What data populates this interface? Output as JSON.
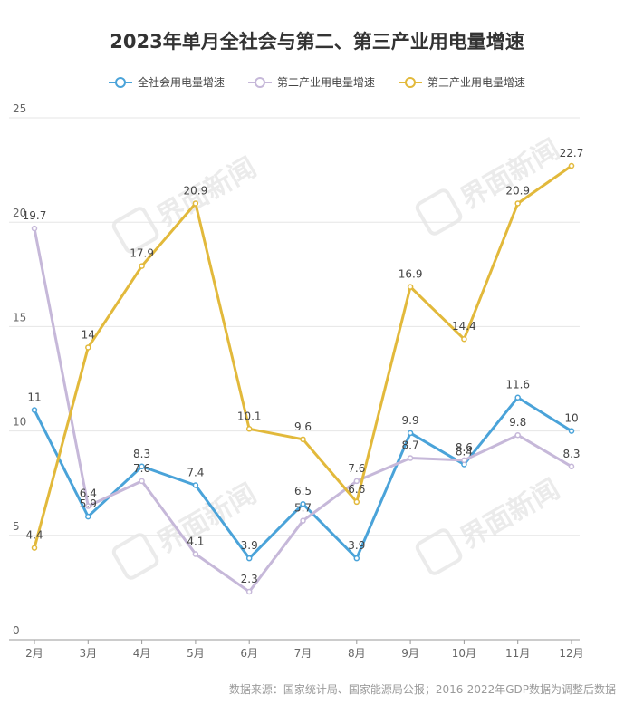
{
  "chart_data": {
    "type": "line",
    "title": "2023年单月全社会与第二、第三产业用电量增速",
    "categories": [
      "2月",
      "3月",
      "4月",
      "5月",
      "6月",
      "7月",
      "8月",
      "9月",
      "10月",
      "11月",
      "12月"
    ],
    "ylim": [
      0,
      25
    ],
    "yticks": [
      "0",
      "5",
      "10",
      "15",
      "20",
      "25"
    ],
    "grid": true,
    "legend_position": "top",
    "series": [
      {
        "name": "全社会用电量增速",
        "color": "#4aa3d9",
        "values": [
          11,
          5.9,
          8.3,
          7.4,
          3.9,
          6.5,
          3.9,
          9.9,
          8.4,
          11.6,
          10
        ],
        "labels": [
          "11",
          "5.9",
          "8.3",
          "7.4",
          "3.9",
          "6.5",
          "3.9",
          "9.9",
          "8.4",
          "11.6",
          "10"
        ]
      },
      {
        "name": "第二产业用电量增速",
        "color": "#c6b8d9",
        "values": [
          19.7,
          6.4,
          7.6,
          4.1,
          2.3,
          5.7,
          7.6,
          8.7,
          8.6,
          9.8,
          8.3
        ],
        "labels": [
          "19.7",
          "6.4",
          "7.6",
          "4.1",
          "2.3",
          "5.7",
          "7.6",
          "8.7",
          "8.6",
          "9.8",
          "8.3"
        ]
      },
      {
        "name": "第三产业用电量增速",
        "color": "#e2b93b",
        "values": [
          4.4,
          14,
          17.9,
          20.9,
          10.1,
          9.6,
          6.6,
          16.9,
          14.4,
          20.9,
          22.7
        ],
        "labels": [
          "4.4",
          "14",
          "17.9",
          "20.9",
          "10.1",
          "9.6",
          "6.6",
          "16.9",
          "14.4",
          "20.9",
          "22.7"
        ]
      }
    ]
  },
  "source_note": "数据来源：国家统计局、国家能源局公报；2016-2022年GDP数据为调整后数据",
  "watermark_text": "界面新闻"
}
